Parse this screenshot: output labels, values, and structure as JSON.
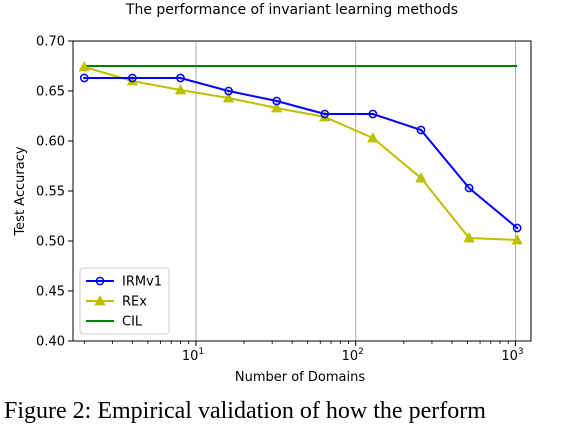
{
  "chart_data": {
    "type": "line",
    "title": "The performance of invariant learning methods",
    "xlabel": "Number of Domains",
    "ylabel": "Test Accuracy",
    "xscale": "log",
    "xlim": [
      1.7,
      1250
    ],
    "ylim": [
      0.4,
      0.7
    ],
    "x_ticks": [
      {
        "value": 10,
        "base": "10",
        "exp": "1"
      },
      {
        "value": 100,
        "base": "10",
        "exp": "2"
      },
      {
        "value": 1000,
        "base": "10",
        "exp": "3"
      }
    ],
    "y_ticks": [
      "0.40",
      "0.45",
      "0.50",
      "0.55",
      "0.60",
      "0.65",
      "0.70"
    ],
    "grid": "vertical",
    "legend_position": "bottom-left",
    "x": [
      2,
      4,
      8,
      16,
      32,
      64,
      128,
      256,
      512,
      1024
    ],
    "series": [
      {
        "name": "IRMv1",
        "color": "#0000ff",
        "marker": "circle-dot",
        "values": [
          0.663,
          0.663,
          0.663,
          0.65,
          0.64,
          0.627,
          0.627,
          0.611,
          0.553,
          0.513
        ]
      },
      {
        "name": "REx",
        "color": "#bfbf00",
        "marker": "triangle",
        "values": [
          0.674,
          0.66,
          0.651,
          0.643,
          0.633,
          0.624,
          0.603,
          0.563,
          0.503,
          0.501
        ]
      },
      {
        "name": "CIL",
        "color": "#008000",
        "marker": "none",
        "values": [
          0.675,
          0.675,
          0.675,
          0.675,
          0.675,
          0.675,
          0.675,
          0.675,
          0.675,
          0.675
        ]
      }
    ]
  },
  "caption": "Figure 2: Empirical validation of how the perform"
}
